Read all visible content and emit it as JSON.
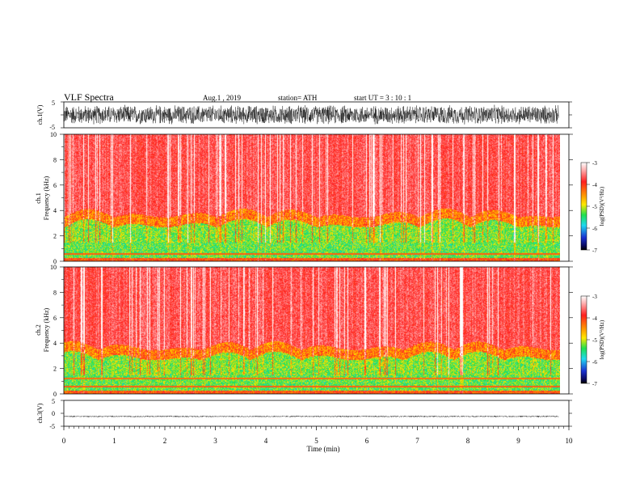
{
  "header": {
    "title": "VLF  Spectra",
    "date": "Aug.1   , 2019",
    "station": "station= ATH",
    "start": "start  UT  =    3   : 10 : 1"
  },
  "colorbars": [
    {
      "label": "log(PSD)(V²/Hz)",
      "ticks": [
        "-3",
        "-4",
        "-5",
        "-6",
        "-7"
      ]
    },
    {
      "label": "log(PSD)(V²/Hz)",
      "ticks": [
        "-3",
        "-4",
        "-5",
        "-6",
        "-7"
      ]
    }
  ],
  "colors": {
    "high": "#f5f5f5",
    "red": "#ff2a1a",
    "yellow": "#ffe000",
    "green": "#1ee05a",
    "cyan": "#2ad8e8",
    "blue": "#1a30c8",
    "low": "#000000"
  },
  "chart_data": [
    {
      "type": "line",
      "panel": "ch1-waveform",
      "ylabel": "ch.1(V)",
      "ylim": [
        -5,
        5
      ],
      "yticks": [
        "5",
        "-5"
      ],
      "xlim": [
        0,
        10
      ],
      "description_values": {
        "mean": 0,
        "amplitude_envelope": 4
      }
    },
    {
      "type": "heatmap",
      "panel": "ch1-spectrogram",
      "ylabel_line1": "ch.1",
      "ylabel_line2": "Frequency  (kHz)",
      "ylim": [
        0,
        10
      ],
      "yticks": [
        "0",
        "2",
        "4",
        "6",
        "8",
        "10"
      ],
      "xlim": [
        0,
        9.8
      ],
      "clim": [
        -7,
        -3
      ]
    },
    {
      "type": "heatmap",
      "panel": "ch2-spectrogram",
      "ylabel_line1": "ch.2",
      "ylabel_line2": "Frequency  (kHz)",
      "ylim": [
        0,
        10
      ],
      "yticks": [
        "0",
        "2",
        "4",
        "6",
        "8",
        "10"
      ],
      "xlim": [
        0,
        9.8
      ],
      "clim": [
        -7,
        -3
      ]
    },
    {
      "type": "line",
      "panel": "ch3-waveform",
      "ylabel": "ch.3(V)",
      "ylim": [
        -5,
        5
      ],
      "yticks": [
        "5",
        "0",
        "-5"
      ],
      "xlim": [
        0,
        10
      ],
      "description_values": {
        "mean": -1.2,
        "amplitude_envelope": 0.3
      }
    }
  ],
  "xaxis": {
    "label": "Time  (min)",
    "ticks": [
      "0",
      "1",
      "2",
      "3",
      "4",
      "5",
      "6",
      "7",
      "8",
      "9",
      "10"
    ]
  }
}
